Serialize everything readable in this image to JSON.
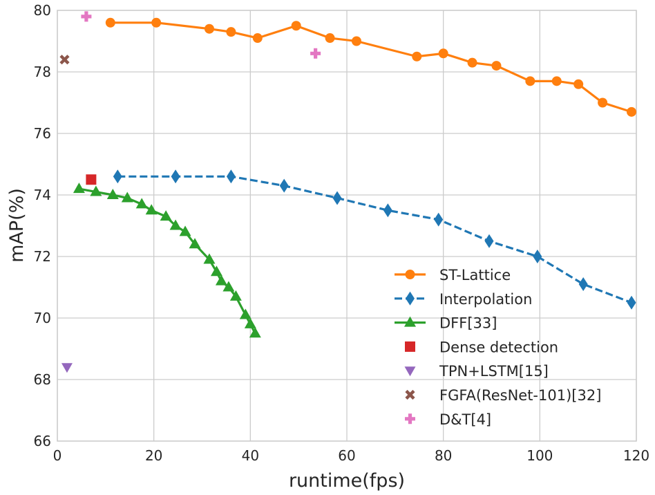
{
  "chart_data": {
    "type": "line",
    "title": "",
    "xlabel": "runtime(fps)",
    "ylabel": "mAP(%)",
    "xlim": [
      0,
      120
    ],
    "ylim": [
      66,
      80
    ],
    "xticks": [
      0,
      20,
      40,
      60,
      80,
      100,
      120
    ],
    "yticks": [
      66,
      68,
      70,
      72,
      74,
      76,
      78,
      80
    ],
    "grid": true,
    "legend_position": "lower-right",
    "series": [
      {
        "name": "ST-Lattice",
        "color": "#ff7f0e",
        "marker": "circle",
        "line": "solid",
        "x": [
          11,
          20.5,
          31.5,
          36,
          41.5,
          49.5,
          56.5,
          62,
          74.5,
          80,
          86,
          91,
          98,
          103.5,
          108,
          113,
          119
        ],
        "y": [
          79.6,
          79.6,
          79.4,
          79.3,
          79.1,
          79.5,
          79.1,
          79.0,
          78.5,
          78.6,
          78.3,
          78.2,
          77.7,
          77.7,
          77.6,
          77.0,
          76.7
        ]
      },
      {
        "name": "Interpolation",
        "color": "#1f77b4",
        "marker": "thin_diamond",
        "line": "dashed",
        "x": [
          12.5,
          24.5,
          36,
          47,
          58,
          68.5,
          79,
          89.5,
          99.5,
          109,
          119
        ],
        "y": [
          74.6,
          74.6,
          74.6,
          74.3,
          73.9,
          73.5,
          73.2,
          72.5,
          72.0,
          71.1,
          70.5
        ]
      },
      {
        "name": "DFF[33]",
        "color": "#2ca02c",
        "marker": "triangle_up",
        "line": "solid",
        "x": [
          4.5,
          8,
          11.5,
          14.5,
          17.5,
          19.5,
          22.5,
          24.5,
          26.5,
          28.5,
          31.5,
          33,
          34,
          35.5,
          37,
          39,
          40,
          41
        ],
        "y": [
          74.2,
          74.1,
          74.0,
          73.9,
          73.7,
          73.5,
          73.3,
          73.0,
          72.8,
          72.4,
          71.9,
          71.5,
          71.2,
          71.0,
          70.7,
          70.1,
          69.8,
          69.5
        ]
      },
      {
        "name": "Dense detection",
        "color": "#d62728",
        "marker": "square",
        "line": "none",
        "x": [
          7
        ],
        "y": [
          74.5
        ]
      },
      {
        "name": "TPN+LSTM[15]",
        "color": "#9467bd",
        "marker": "triangle_down",
        "line": "none",
        "x": [
          2
        ],
        "y": [
          68.4
        ]
      },
      {
        "name": "FGFA(ResNet-101)[32]",
        "color": "#8c564b",
        "marker": "x_filled",
        "line": "none",
        "x": [
          1.5
        ],
        "y": [
          78.4
        ]
      },
      {
        "name": "D&T[4]",
        "color": "#e377c2",
        "marker": "plus_filled",
        "line": "none",
        "x": [
          6,
          53.5
        ],
        "y": [
          79.8,
          78.6
        ]
      }
    ]
  }
}
